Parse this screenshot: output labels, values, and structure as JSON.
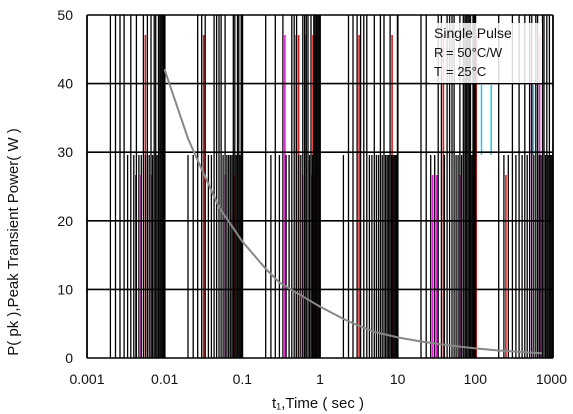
{
  "chart_data": {
    "type": "line",
    "title": "",
    "xlabel": "t₁,Time ( sec )",
    "ylabel": "P( pk ),Peak Transient Power( W )",
    "x_scale": "log",
    "xlim": [
      0.001,
      1000
    ],
    "ylim": [
      0,
      50
    ],
    "x_ticks": [
      0.001,
      0.01,
      0.1,
      1,
      10,
      100,
      1000
    ],
    "x_tick_labels": [
      "0.001",
      "0.01",
      "0.1",
      "1",
      "10",
      "100",
      "1000"
    ],
    "y_ticks": [
      0,
      10,
      20,
      30,
      40,
      50
    ],
    "y_tick_labels": [
      "0",
      "10",
      "20",
      "30",
      "40",
      "50"
    ],
    "grid": true,
    "annotations": [
      "Single Pulse",
      "R",
      "= 50°C/W",
      "T",
      "= 25°C"
    ],
    "series": [
      {
        "x": [
          0.01,
          0.02,
          0.03,
          0.05,
          0.1,
          0.2,
          0.3,
          0.5,
          1,
          2,
          3,
          5,
          10,
          20,
          50,
          100,
          200,
          500,
          700
        ],
        "y": [
          42,
          32,
          27.5,
          22,
          17,
          13,
          11,
          9.5,
          7.5,
          5.7,
          4.8,
          3.8,
          3.0,
          2.4,
          1.8,
          1.4,
          1.1,
          0.8,
          0.7
        ]
      }
    ],
    "colors": {
      "curve": "#888888",
      "grid": "#000000",
      "artifact_red": "#e01818",
      "artifact_magenta": "#e020d0",
      "artifact_cyan": "#20c8e0"
    }
  }
}
